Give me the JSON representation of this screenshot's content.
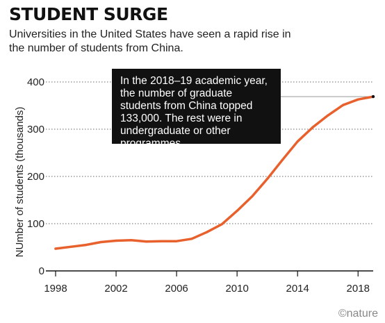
{
  "title": "STUDENT SURGE",
  "subtitle": "Universities in the United States have seen a rapid rise in the number of students from China.",
  "callout": "In the 2018–19 academic year, the number of graduate students from China topped 133,000. The rest were in undergraduate or other programmes.",
  "credit": "©nature",
  "colors": {
    "line": "#e8612c",
    "annotation_bg": "#111111",
    "grid": "#666666"
  },
  "chart_data": {
    "type": "line",
    "title": "STUDENT SURGE",
    "ylabel": "NUmber of students (thousands)",
    "xlabel": "",
    "xlim": [
      1998,
      2019
    ],
    "ylim": [
      0,
      400
    ],
    "x_ticks": [
      1998,
      2002,
      2006,
      2010,
      2014,
      2018
    ],
    "y_ticks": [
      0,
      100,
      200,
      300,
      400
    ],
    "grid": "horizontal dotted",
    "series": [
      {
        "x": [
          1998,
          1999,
          2000,
          2001,
          2002,
          2003,
          2004,
          2005,
          2006,
          2007,
          2008,
          2009,
          2010,
          2011,
          2012,
          2013,
          2014,
          2015,
          2016,
          2017,
          2018,
          2019
        ],
        "values": [
          47,
          51,
          55,
          61,
          64,
          65,
          62,
          63,
          63,
          68,
          82,
          99,
          127,
          158,
          195,
          235,
          274,
          304,
          329,
          351,
          363,
          369
        ]
      }
    ]
  }
}
